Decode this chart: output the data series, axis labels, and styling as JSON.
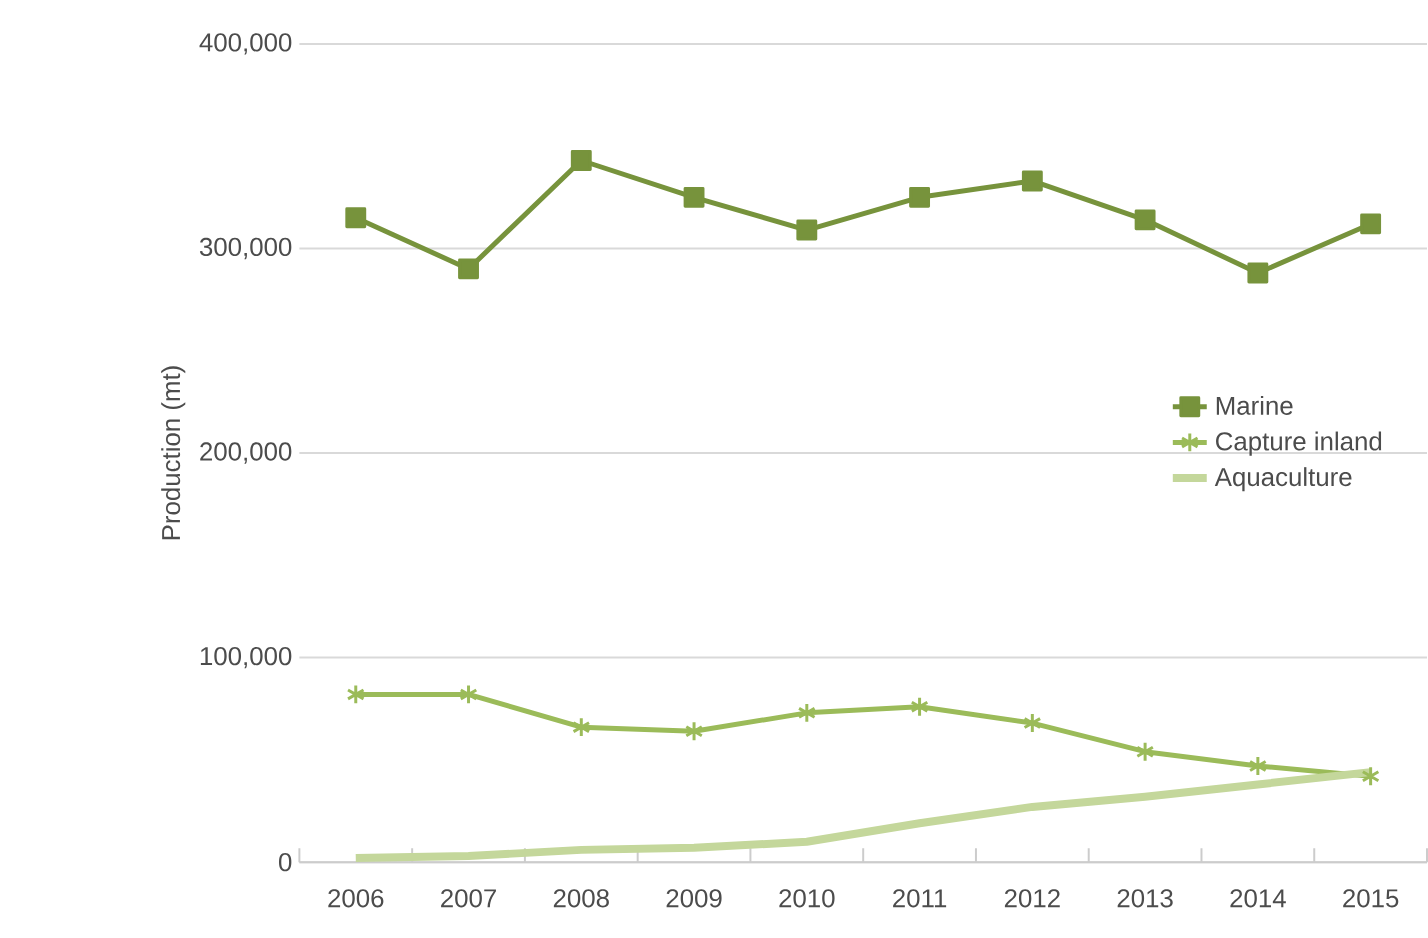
{
  "chart_data": {
    "type": "line",
    "ylabel": "Production (mt)",
    "categories": [
      "2006",
      "2007",
      "2008",
      "2009",
      "2010",
      "2011",
      "2012",
      "2013",
      "2014",
      "2015"
    ],
    "ylim": [
      0,
      400000
    ],
    "yticks": [
      {
        "value": 0,
        "label": "0"
      },
      {
        "value": 100000,
        "label": "100,000"
      },
      {
        "value": 200000,
        "label": "200,000"
      },
      {
        "value": 300000,
        "label": "300,000"
      },
      {
        "value": 400000,
        "label": "400,000"
      }
    ],
    "grid": "y",
    "legend": "right",
    "series": [
      {
        "name": "Marine",
        "color": "#77933c",
        "marker": "square",
        "values": [
          315000,
          290000,
          343000,
          325000,
          309000,
          325000,
          333000,
          314000,
          288000,
          312000
        ]
      },
      {
        "name": "Capture inland",
        "color": "#9bbb59",
        "marker": "cross",
        "values": [
          82000,
          82000,
          66000,
          64000,
          73000,
          76000,
          68000,
          54000,
          47000,
          42000
        ]
      },
      {
        "name": "Aquaculture",
        "color": "#c4d79b",
        "marker": "none",
        "values": [
          2000,
          3000,
          6000,
          7000,
          10000,
          19000,
          27000,
          32000,
          38000,
          44000
        ]
      }
    ]
  }
}
